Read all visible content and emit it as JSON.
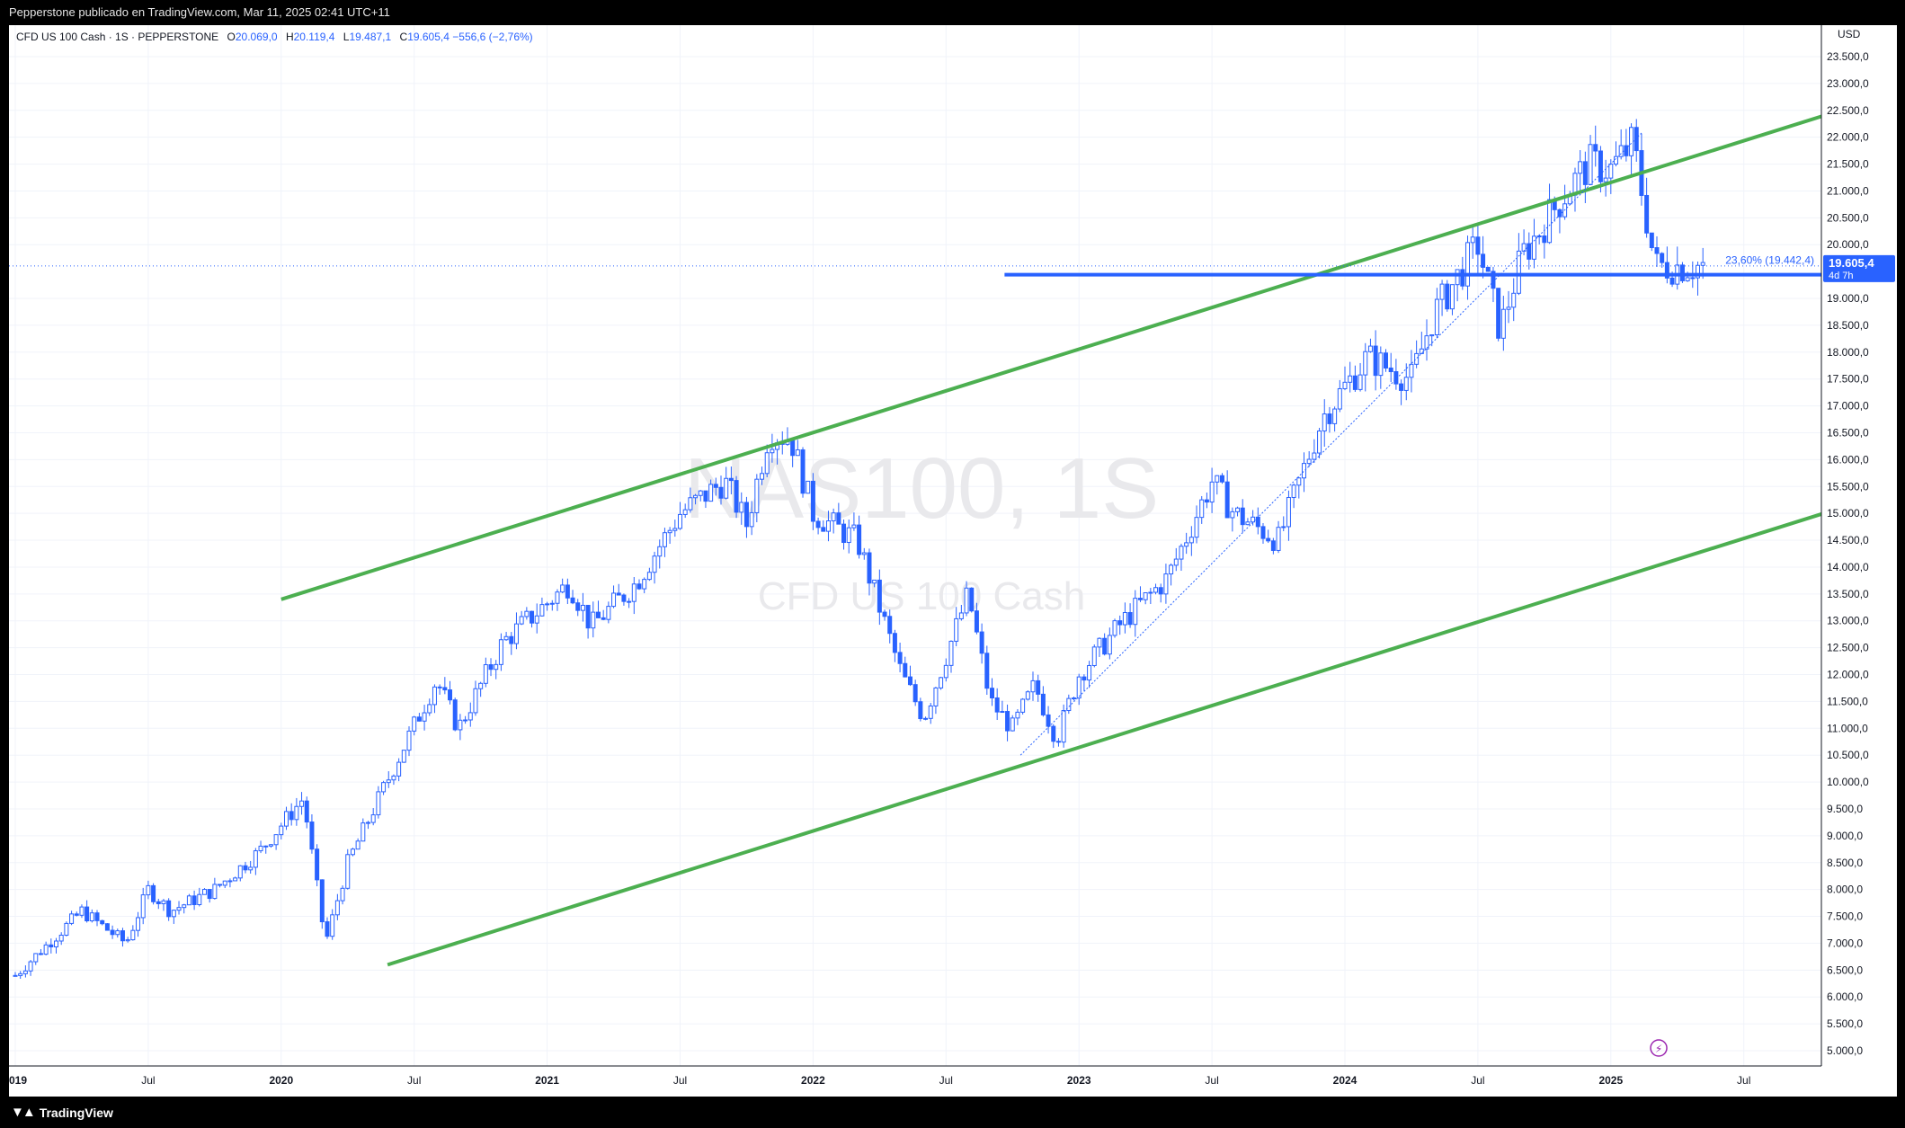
{
  "header": {
    "publisher_line": "Pepperstone publicado en TradingView.com, Mar 11, 2025 02:41 UTC+11"
  },
  "footer": {
    "brand": "TradingView"
  },
  "legend": {
    "symbol": "CFD US 100 Cash · 1S · PEPPERSTONE",
    "o_label": "O",
    "o_value": "20.069,0",
    "h_label": "H",
    "h_value": "20.119,4",
    "l_label": "L",
    "l_value": "19.487,1",
    "c_label": "C",
    "c_value": "19.605,4",
    "change": "−556,6 (−2,76%)"
  },
  "watermark": {
    "ticker": "NAS100, 1S",
    "name": "CFD US 100 Cash"
  },
  "colors": {
    "candle": "#2962ff",
    "channel": "#4caf50",
    "support": "#2962ff",
    "price_badge": "#2962ff"
  },
  "price_axis": {
    "unit": "USD",
    "labels": [
      "23.500,0",
      "23.000,0",
      "22.500,0",
      "22.000,0",
      "21.500,0",
      "21.000,0",
      "20.500,0",
      "20.000,0",
      "19.000,0",
      "18.500,0",
      "18.000,0",
      "17.500,0",
      "17.000,0",
      "16.500,0",
      "16.000,0",
      "15.500,0",
      "15.000,0",
      "14.500,0",
      "14.000,0",
      "13.500,0",
      "13.000,0",
      "12.500,0",
      "12.000,0",
      "11.500,0",
      "11.000,0",
      "10.500,0",
      "10.000,0",
      "9.500,0",
      "9.000,0",
      "8.500,0",
      "8.000,0",
      "7.500,0",
      "7.000,0",
      "6.500,0",
      "6.000,0",
      "5.500,0",
      "5.000,0"
    ],
    "current_price": "19.605,4",
    "countdown": "4d 7h"
  },
  "time_axis": {
    "labels": [
      "019",
      "Jul",
      "2020",
      "Jul",
      "2021",
      "Jul",
      "2022",
      "Jul",
      "2023",
      "Jul",
      "2024",
      "Jul",
      "2025",
      "Jul"
    ]
  },
  "fib_label": "23,60% (19.442,4)",
  "chart_data": {
    "type": "candlestick",
    "title": "CFD US 100 Cash · 1S · PEPPERSTONE",
    "ylabel": "USD",
    "ylim": [
      4800,
      23900
    ],
    "x_range": [
      "2019-01",
      "2025-10"
    ],
    "grid": true,
    "series": [
      {
        "name": "CFD US 100 Cash",
        "x": [
          "2019-01",
          "2019-04",
          "2019-06",
          "2019-07",
          "2019-08",
          "2019-10",
          "2019-12",
          "2020-02",
          "2020-03",
          "2020-04",
          "2020-06",
          "2020-08",
          "2020-09",
          "2020-11",
          "2021-02",
          "2021-03",
          "2021-05",
          "2021-07",
          "2021-09",
          "2021-10",
          "2021-11",
          "2021-12",
          "2022-01",
          "2022-03",
          "2022-05",
          "2022-06",
          "2022-08",
          "2022-09",
          "2022-10",
          "2022-11",
          "2022-12",
          "2023-01",
          "2023-03",
          "2023-05",
          "2023-07",
          "2023-08",
          "2023-10",
          "2023-12",
          "2024-02",
          "2024-04",
          "2024-05",
          "2024-07",
          "2024-08",
          "2024-09",
          "2024-11",
          "2024-12",
          "2025-01",
          "2025-02",
          "2025-03"
        ],
        "close": [
          6400,
          7600,
          7000,
          8000,
          7600,
          8000,
          8700,
          9700,
          7000,
          8500,
          10200,
          11900,
          11000,
          12600,
          13700,
          12900,
          13700,
          15000,
          15600,
          14800,
          16500,
          16400,
          15000,
          14500,
          12000,
          11200,
          13500,
          11500,
          11000,
          11800,
          10800,
          12000,
          13000,
          13800,
          15600,
          15000,
          14500,
          16800,
          17900,
          17500,
          18700,
          20000,
          18400,
          19800,
          21000,
          21500,
          21400,
          21900,
          19605
        ],
        "channel_upper": [
          [
            2020,
            13400
          ],
          [
            2025.8,
            22400
          ]
        ],
        "channel_lower": [
          [
            2020.4,
            6600
          ],
          [
            2025.8,
            15000
          ]
        ],
        "support_level": 19442.4,
        "fib_level": "23,60% (19.442,4)",
        "last_price": 19605.4
      }
    ]
  }
}
